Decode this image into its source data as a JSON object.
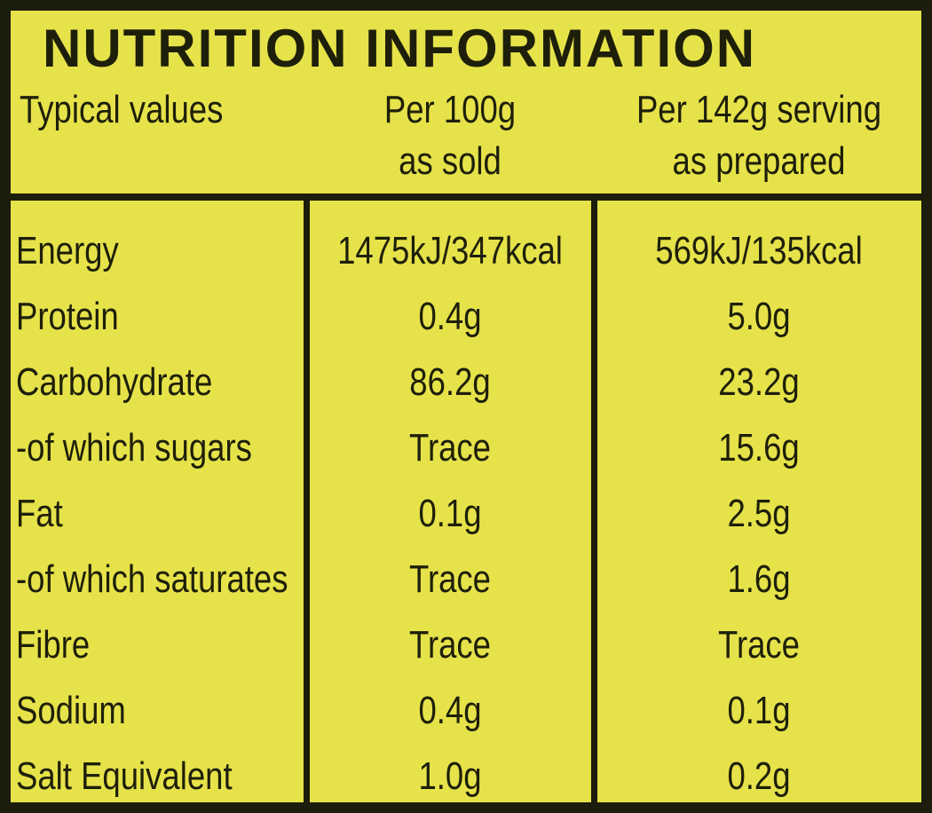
{
  "label": {
    "title": "NUTRITION INFORMATION",
    "header": {
      "typical_values": "Typical values",
      "per100_line1": "Per 100g",
      "per100_line2": "as sold",
      "serving_line1": "Per 142g serving",
      "serving_line2": "as prepared"
    },
    "rows": [
      {
        "nutrient": "Energy",
        "per100": "1475kJ/347kcal",
        "serving": "569kJ/135kcal"
      },
      {
        "nutrient": "Protein",
        "per100": "0.4g",
        "serving": "5.0g"
      },
      {
        "nutrient": "Carbohydrate",
        "per100": "86.2g",
        "serving": "23.2g"
      },
      {
        "nutrient": "-of which sugars",
        "per100": "Trace",
        "serving": "15.6g"
      },
      {
        "nutrient": "Fat",
        "per100": "0.1g",
        "serving": "2.5g"
      },
      {
        "nutrient": "-of which saturates",
        "per100": "Trace",
        "serving": "1.6g"
      },
      {
        "nutrient": "Fibre",
        "per100": "Trace",
        "serving": "Trace"
      },
      {
        "nutrient": "Sodium",
        "per100": "0.4g",
        "serving": "0.1g"
      },
      {
        "nutrient": "Salt Equivalent",
        "per100": "1.0g",
        "serving": "0.2g"
      }
    ],
    "colors": {
      "background": "#e6e24a",
      "ink": "#1e1f0a",
      "rule": "#1c1d0c"
    }
  }
}
